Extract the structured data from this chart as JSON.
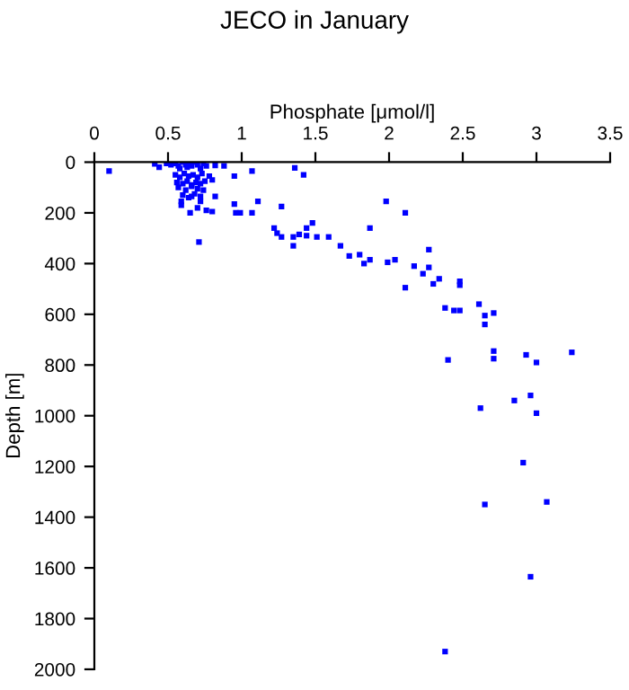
{
  "chart_data": {
    "type": "scatter",
    "title": "JECO in January",
    "xlabel": "Phosphate [μmol/l]",
    "ylabel": "Depth [m]",
    "xlim": [
      0,
      3.5
    ],
    "xticks": [
      0,
      0.5,
      1,
      1.5,
      2,
      2.5,
      3,
      3.5
    ],
    "ylim": [
      2000,
      0
    ],
    "yticks": [
      0,
      200,
      400,
      600,
      800,
      1000,
      1200,
      1400,
      1600,
      1800,
      2000
    ],
    "grid": false,
    "marker": "square",
    "series": [
      {
        "color": "#0000ff",
        "x": [
          0.1,
          0.41,
          0.44,
          0.49,
          0.52,
          0.55,
          0.57,
          0.58,
          0.6,
          0.62,
          0.63,
          0.65,
          0.66,
          0.68,
          0.7,
          0.72,
          0.74,
          0.76,
          0.55,
          0.58,
          0.61,
          0.64,
          0.67,
          0.7,
          0.73,
          0.78,
          0.56,
          0.6,
          0.63,
          0.66,
          0.69,
          0.72,
          0.75,
          0.8,
          0.57,
          0.62,
          0.66,
          0.7,
          0.74,
          0.6,
          0.64,
          0.68,
          0.72,
          0.82,
          0.88,
          0.95,
          1.07,
          1.36,
          1.42,
          0.59,
          0.59,
          0.66,
          0.72,
          0.82,
          0.65,
          0.7,
          0.76,
          0.8,
          0.71,
          0.95,
          0.96,
          0.99,
          1.07,
          1.11,
          1.27,
          1.22,
          1.24,
          1.27,
          1.35,
          1.39,
          1.44,
          1.48,
          1.44,
          1.51,
          1.59,
          1.35,
          1.67,
          1.73,
          1.98,
          2.11,
          1.87,
          1.8,
          1.83,
          1.87,
          1.99,
          2.04,
          2.17,
          2.27,
          2.27,
          2.23,
          2.11,
          2.3,
          2.34,
          2.48,
          2.48,
          2.38,
          2.44,
          2.48,
          2.61,
          2.65,
          2.71,
          2.65,
          2.4,
          2.71,
          2.71,
          2.93,
          3.0,
          3.24,
          2.96,
          2.85,
          2.62,
          3.0,
          2.91,
          2.65,
          3.07,
          2.96,
          2.38
        ],
        "values": [
          35,
          7,
          20,
          5,
          10,
          5,
          15,
          25,
          0,
          10,
          20,
          5,
          15,
          0,
          10,
          25,
          5,
          15,
          50,
          60,
          45,
          55,
          50,
          60,
          45,
          55,
          80,
          85,
          75,
          90,
          80,
          85,
          75,
          70,
          100,
          110,
          95,
          105,
          110,
          130,
          140,
          125,
          135,
          13,
          15,
          55,
          35,
          23,
          50,
          155,
          170,
          135,
          155,
          135,
          200,
          180,
          190,
          195,
          315,
          165,
          200,
          200,
          200,
          155,
          175,
          260,
          280,
          295,
          295,
          285,
          260,
          240,
          290,
          295,
          295,
          330,
          330,
          370,
          155,
          200,
          260,
          365,
          400,
          385,
          395,
          385,
          410,
          345,
          415,
          440,
          495,
          480,
          460,
          470,
          485,
          575,
          585,
          585,
          560,
          605,
          595,
          640,
          780,
          745,
          775,
          760,
          790,
          750,
          920,
          940,
          970,
          990,
          1185,
          1350,
          1340,
          1635,
          1930
        ]
      }
    ]
  }
}
